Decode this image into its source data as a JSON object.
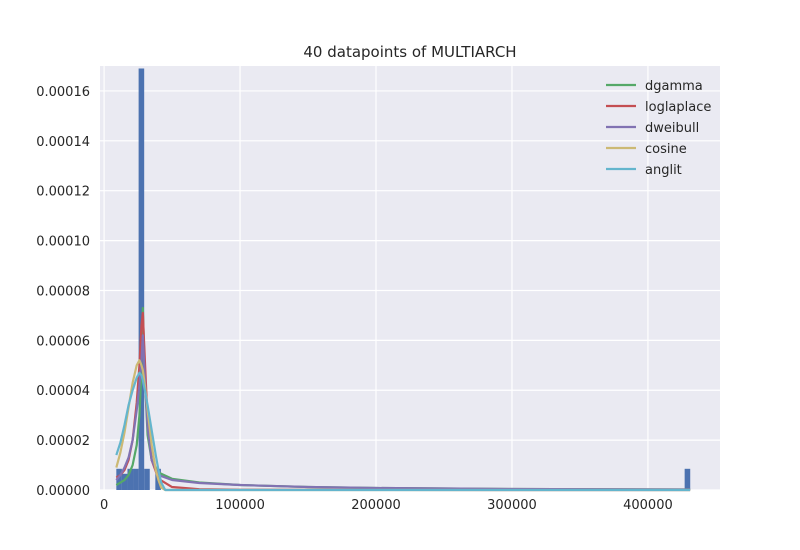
{
  "chart_data": {
    "type": "histogram",
    "title": "40 datapoints of MULTIARCH",
    "xlabel": "",
    "ylabel": "",
    "xlim": [
      -3000,
      453000
    ],
    "ylim": [
      0,
      0.00017
    ],
    "grid": true,
    "legend_position": "top-right",
    "x_ticks": [
      0,
      100000,
      200000,
      300000,
      400000
    ],
    "x_tick_labels": [
      "0",
      "100000",
      "200000",
      "300000",
      "400000"
    ],
    "y_ticks": [
      0,
      2e-05,
      4e-05,
      6e-05,
      8e-05,
      0.0001,
      0.00012,
      0.00014,
      0.00016
    ],
    "y_tick_labels": [
      "0.00000",
      "0.00002",
      "0.00004",
      "0.00006",
      "0.00008",
      "0.00010",
      "0.00012",
      "0.00014",
      "0.00016"
    ],
    "histogram": {
      "color": "#4C72B0",
      "bins": [
        {
          "x0": 9000,
          "x1": 13100,
          "value": 8.5e-06
        },
        {
          "x0": 13100,
          "x1": 17200,
          "value": 6.5e-06
        },
        {
          "x0": 17200,
          "x1": 21300,
          "value": 8.5e-06
        },
        {
          "x0": 21300,
          "x1": 25400,
          "value": 8.5e-06
        },
        {
          "x0": 25400,
          "x1": 29500,
          "value": 0.000169
        },
        {
          "x0": 29500,
          "x1": 33600,
          "value": 8.5e-06
        },
        {
          "x0": 37700,
          "x1": 41800,
          "value": 8.5e-06
        },
        {
          "x0": 427000,
          "x1": 431100,
          "value": 8.5e-06
        }
      ]
    },
    "series": [
      {
        "name": "dgamma",
        "color": "#55A868",
        "x": [
          9000,
          12000,
          15000,
          18000,
          21000,
          24000,
          26000,
          27500,
          28500,
          30000,
          32000,
          35000,
          40000,
          50000,
          70000,
          100000,
          150000,
          200000,
          300000,
          431000
        ],
        "y": [
          2e-06,
          3e-06,
          4e-06,
          6e-06,
          1e-05,
          1.8e-05,
          3e-05,
          4.8e-05,
          7.3e-05,
          4.5e-05,
          2.2e-05,
          1.2e-05,
          7e-06,
          4.5e-06,
          3e-06,
          2e-06,
          1.2e-06,
          8e-07,
          4e-07,
          2e-07
        ]
      },
      {
        "name": "loglaplace",
        "color": "#C44E52",
        "x": [
          9000,
          12000,
          15000,
          18000,
          21000,
          24000,
          26000,
          27500,
          28500,
          30000,
          32000,
          35000,
          40000,
          50000,
          70000,
          100000,
          150000,
          200000,
          300000,
          431000
        ],
        "y": [
          5e-06,
          6e-06,
          8e-06,
          1.2e-05,
          2e-05,
          3.5e-05,
          5e-05,
          6.6e-05,
          7.1e-05,
          5.2e-05,
          2.8e-05,
          1.2e-05,
          4.5e-06,
          1.2e-06,
          3e-07,
          1e-07,
          5e-08,
          2e-08,
          1e-08,
          0.0
        ],
        "notes": ""
      },
      {
        "name": "dweibull",
        "color": "#8172B2",
        "x": [
          9000,
          12000,
          15000,
          18000,
          21000,
          24000,
          26000,
          27500,
          28500,
          30000,
          32000,
          35000,
          40000,
          50000,
          70000,
          100000,
          150000,
          200000,
          300000,
          431000
        ],
        "y": [
          4e-06,
          6e-06,
          9e-06,
          1.3e-05,
          2e-05,
          3.2e-05,
          4.2e-05,
          5.2e-05,
          6.2e-05,
          4.5e-05,
          2.5e-05,
          1.2e-05,
          6e-06,
          4e-06,
          2.8e-06,
          2e-06,
          1.2e-06,
          8e-07,
          4e-07,
          2e-07
        ]
      },
      {
        "name": "cosine",
        "color": "#CCB974",
        "x": [
          9000,
          12000,
          15000,
          18000,
          21000,
          24000,
          26000,
          27500,
          28500,
          30000,
          32000,
          35000,
          38000,
          40000,
          42000,
          45000,
          50000,
          100000,
          200000,
          300000,
          431000
        ],
        "y": [
          9e-06,
          1.5e-05,
          2.3e-05,
          3.3e-05,
          4.3e-05,
          5e-05,
          5.2e-05,
          5e-05,
          4.8e-05,
          4.2e-05,
          3.2e-05,
          1.8e-05,
          8e-06,
          4e-06,
          1e-06,
          0.0,
          0.0,
          0.0,
          0.0,
          0.0,
          0.0
        ]
      },
      {
        "name": "anglit",
        "color": "#64B5CD",
        "x": [
          9000,
          12000,
          15000,
          18000,
          21000,
          24000,
          26000,
          27500,
          28500,
          30000,
          32000,
          35000,
          38000,
          40000,
          42000,
          45000,
          50000,
          100000,
          200000,
          300000,
          431000
        ],
        "y": [
          1.4e-05,
          1.9e-05,
          2.6e-05,
          3.4e-05,
          4e-05,
          4.5e-05,
          4.7e-05,
          4.6e-05,
          4.4e-05,
          4e-05,
          3.4e-05,
          2.4e-05,
          1.4e-05,
          8e-06,
          3e-06,
          0.0,
          0.0,
          0.0,
          0.0,
          0.0,
          0.0
        ]
      }
    ]
  }
}
